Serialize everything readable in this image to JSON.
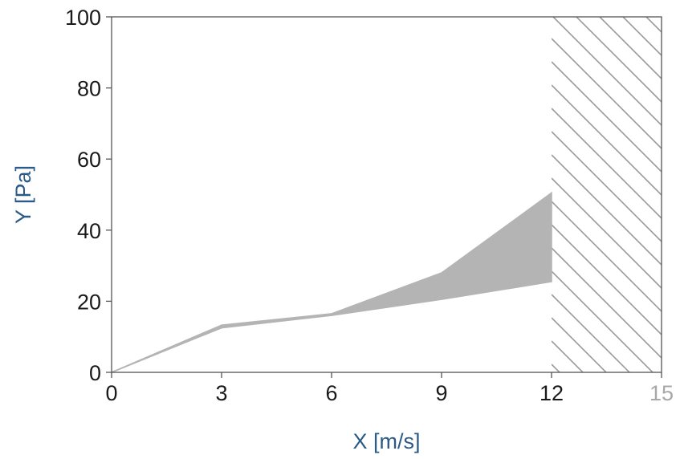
{
  "chart_data": {
    "type": "area",
    "title": "",
    "xlabel": "X [m/s]",
    "ylabel": "Y [Pa]",
    "xlim": [
      0,
      15
    ],
    "ylim": [
      0,
      100
    ],
    "x_ticks": [
      0,
      3,
      6,
      9,
      12,
      15
    ],
    "y_ticks": [
      0,
      20,
      40,
      60,
      80,
      100
    ],
    "grid": false,
    "series": [
      {
        "x": [
          0,
          3,
          6,
          9,
          12
        ],
        "values": [
          0,
          13.3,
          16.5,
          28.0,
          50.5
        ]
      },
      {
        "x": [
          0,
          3,
          6,
          9,
          12
        ],
        "values": [
          0,
          12.5,
          16.0,
          20.5,
          25.5
        ]
      }
    ],
    "band_fill": "between series",
    "hatched_region_x": [
      12,
      15
    ]
  },
  "colors": {
    "band": "#b4b4b4",
    "hatch": "#9a9a9a",
    "axis": "#555555",
    "tick_text": "#1a1a1a",
    "last_x_tick_text": "#a8a8a8",
    "axis_title": "#2b5a86"
  }
}
